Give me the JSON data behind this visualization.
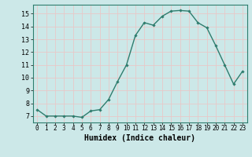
{
  "x": [
    0,
    1,
    2,
    3,
    4,
    5,
    6,
    7,
    8,
    9,
    10,
    11,
    12,
    13,
    14,
    15,
    16,
    17,
    18,
    19,
    20,
    21,
    22,
    23
  ],
  "y": [
    7.5,
    7.0,
    7.0,
    7.0,
    7.0,
    6.9,
    7.4,
    7.5,
    8.3,
    9.7,
    11.0,
    13.3,
    14.3,
    14.1,
    14.8,
    15.2,
    15.25,
    15.2,
    14.3,
    13.9,
    12.5,
    11.0,
    9.5,
    10.5
  ],
  "line_color": "#2e7d6e",
  "marker": "D",
  "marker_size": 1.8,
  "line_width": 1.0,
  "xlabel": "Humidex (Indice chaleur)",
  "xlabel_fontsize": 7,
  "xlabel_fontweight": "bold",
  "xlim": [
    -0.5,
    23.5
  ],
  "ylim": [
    6.5,
    15.7
  ],
  "yticks": [
    7,
    8,
    9,
    10,
    11,
    12,
    13,
    14,
    15
  ],
  "xtick_fontsize": 5.5,
  "ytick_fontsize": 6.0,
  "bg_color": "#cce8e8",
  "grid_color": "#e8c8c8",
  "grid_linewidth": 0.6,
  "spine_color": "#2e7d6e"
}
